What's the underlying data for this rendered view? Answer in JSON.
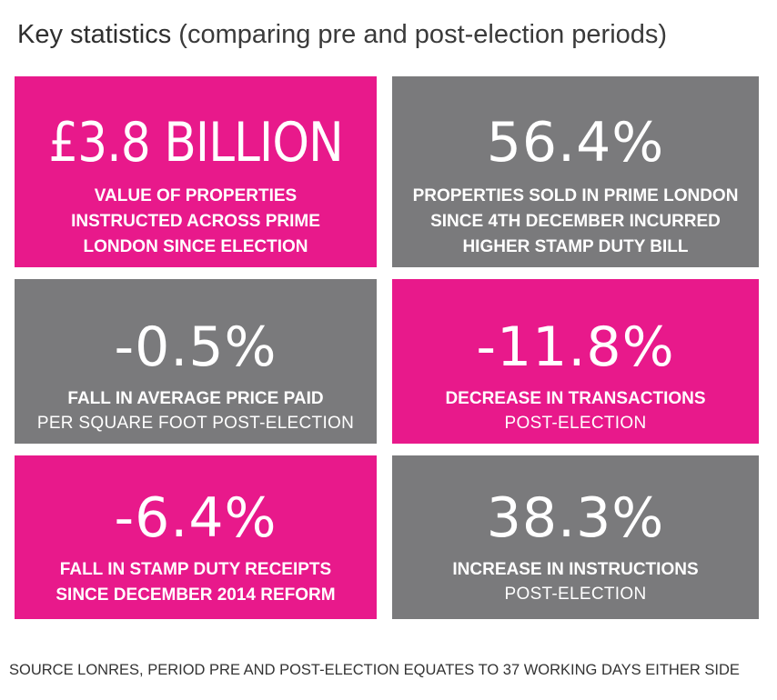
{
  "title": {
    "main": "Key statistics",
    "sub": "(comparing pre and post-election periods)"
  },
  "tiles": [
    {
      "value": "£3.8 BILLION",
      "color": "#e8198b",
      "lines": [
        "VALUE OF PROPERTIES",
        "INSTRUCTED ACROSS PRIME",
        "LONDON SINCE ELECTION"
      ]
    },
    {
      "value": "56.4%",
      "color": "#7a7a7c",
      "lines": [
        "PROPERTIES SOLD IN PRIME LONDON",
        "SINCE 4TH DECEMBER INCURRED",
        "HIGHER STAMP DUTY BILL"
      ]
    },
    {
      "value": "-0.5%",
      "color": "#7a7a7c",
      "line_bold": "FALL IN AVERAGE PRICE PAID",
      "line_light": "PER SQUARE FOOT POST-ELECTION"
    },
    {
      "value": "-11.8%",
      "color": "#e8198b",
      "line_bold": "DECREASE IN TRANSACTIONS",
      "line_light": "POST-ELECTION"
    },
    {
      "value": "-6.4%",
      "color": "#e8198b",
      "lines": [
        "FALL IN STAMP DUTY RECEIPTS",
        "SINCE DECEMBER 2014 REFORM"
      ]
    },
    {
      "value": "38.3%",
      "color": "#7a7a7c",
      "line_bold": "INCREASE IN INSTRUCTIONS",
      "line_light": "POST-ELECTION"
    }
  ],
  "source": "SOURCE LONRES, PERIOD PRE AND POST-ELECTION EQUATES TO 37 WORKING DAYS EITHER SIDE"
}
